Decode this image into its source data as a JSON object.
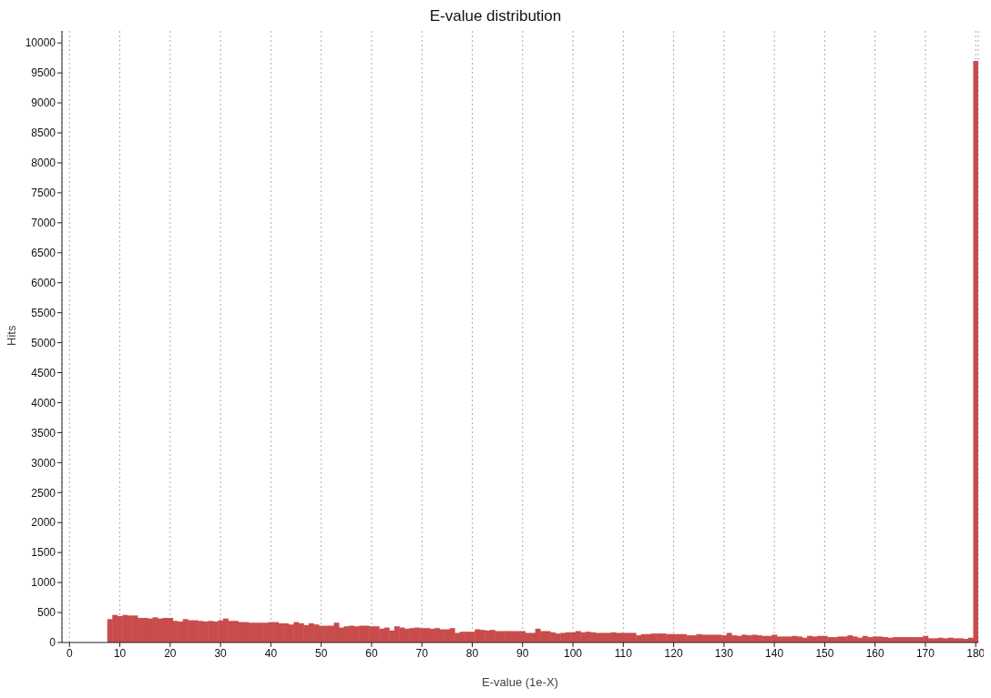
{
  "chart_data": {
    "type": "histogram",
    "title": "E-value distribution",
    "xlabel": "E-value (1e-X)",
    "ylabel": "Hits",
    "bins": [
      7.5,
      8.5,
      9.5,
      10.5,
      11.5,
      12.5,
      13.5,
      14.5,
      15.5,
      16.5,
      17.5,
      18.5,
      19.5,
      20.5,
      21.5,
      22.5,
      23.5,
      24.5,
      25.5,
      26.5,
      27.5,
      28.5,
      29.5,
      30.5,
      31.5,
      32.5,
      33.5,
      34.5,
      35.5,
      36.5,
      37.5,
      38.5,
      39.5,
      40.5,
      41.5,
      42.5,
      43.5,
      44.5,
      45.5,
      46.5,
      47.5,
      48.5,
      49.5,
      50.5,
      51.5,
      52.5,
      53.5,
      54.5,
      55.5,
      56.5,
      57.5,
      58.5,
      59.5,
      60.5,
      61.5,
      62.5,
      63.5,
      64.5,
      65.5,
      66.5,
      67.5,
      68.5,
      69.5,
      70.5,
      71.5,
      72.5,
      73.5,
      74.5,
      75.5,
      76.5,
      77.5,
      78.5,
      79.5,
      80.5,
      81.5,
      82.5,
      83.5,
      84.5,
      85.5,
      86.5,
      87.5,
      88.5,
      89.5,
      90.5,
      91.5,
      92.5,
      93.5,
      94.5,
      95.5,
      96.5,
      97.5,
      98.5,
      99.5,
      100.5,
      101.5,
      102.5,
      103.5,
      104.5,
      105.5,
      106.5,
      107.5,
      108.5,
      109.5,
      110.5,
      111.5,
      112.5,
      113.5,
      114.5,
      115.5,
      116.5,
      117.5,
      118.5,
      119.5,
      120.5,
      121.5,
      122.5,
      123.5,
      124.5,
      125.5,
      126.5,
      127.5,
      128.5,
      129.5,
      130.5,
      131.5,
      132.5,
      133.5,
      134.5,
      135.5,
      136.5,
      137.5,
      138.5,
      139.5,
      140.5,
      141.5,
      142.5,
      143.5,
      144.5,
      145.5,
      146.5,
      147.5,
      148.5,
      149.5,
      150.5,
      151.5,
      152.5,
      153.5,
      154.5,
      155.5,
      156.5,
      157.5,
      158.5,
      159.5,
      160.5,
      161.5,
      162.5,
      163.5,
      164.5,
      165.5,
      166.5,
      167.5,
      168.5,
      169.5,
      170.5,
      171.5,
      172.5,
      173.5,
      174.5,
      175.5,
      176.5,
      177.5,
      178.5,
      179.5,
      180.5
    ],
    "values": [
      390,
      460,
      440,
      460,
      450,
      450,
      410,
      410,
      400,
      420,
      400,
      410,
      410,
      360,
      350,
      390,
      370,
      370,
      360,
      350,
      360,
      350,
      370,
      400,
      360,
      360,
      340,
      340,
      330,
      330,
      330,
      330,
      340,
      340,
      320,
      320,
      300,
      340,
      320,
      290,
      320,
      300,
      280,
      280,
      280,
      330,
      250,
      270,
      280,
      270,
      280,
      280,
      270,
      270,
      230,
      250,
      200,
      270,
      250,
      230,
      240,
      250,
      240,
      240,
      230,
      240,
      220,
      220,
      240,
      160,
      180,
      180,
      180,
      220,
      210,
      200,
      210,
      190,
      190,
      190,
      190,
      190,
      190,
      160,
      160,
      230,
      190,
      190,
      170,
      150,
      160,
      170,
      170,
      190,
      170,
      180,
      170,
      160,
      160,
      160,
      170,
      160,
      160,
      160,
      160,
      120,
      140,
      140,
      150,
      150,
      150,
      140,
      140,
      140,
      140,
      120,
      120,
      140,
      130,
      130,
      130,
      130,
      120,
      160,
      120,
      110,
      130,
      120,
      130,
      120,
      110,
      110,
      130,
      100,
      100,
      100,
      110,
      100,
      80,
      110,
      100,
      110,
      110,
      90,
      90,
      100,
      100,
      120,
      100,
      80,
      110,
      90,
      100,
      100,
      90,
      80,
      90,
      90,
      90,
      90,
      90,
      90,
      110,
      70,
      70,
      80,
      70,
      80,
      70,
      70,
      60,
      80,
      9700
    ],
    "color": "#c94c4c",
    "xlim": [
      -1.5,
      180.5
    ],
    "xticks": [
      0,
      10,
      20,
      30,
      40,
      50,
      60,
      70,
      80,
      90,
      100,
      110,
      120,
      130,
      140,
      150,
      160,
      170,
      180
    ],
    "ylim": [
      0,
      10200
    ],
    "yticks": [
      0,
      500,
      1000,
      1500,
      2000,
      2500,
      3000,
      3500,
      4000,
      4500,
      5000,
      5500,
      6000,
      6500,
      7000,
      7500,
      8000,
      8500,
      9000,
      9500,
      10000
    ],
    "grid": "x",
    "legend": false
  }
}
